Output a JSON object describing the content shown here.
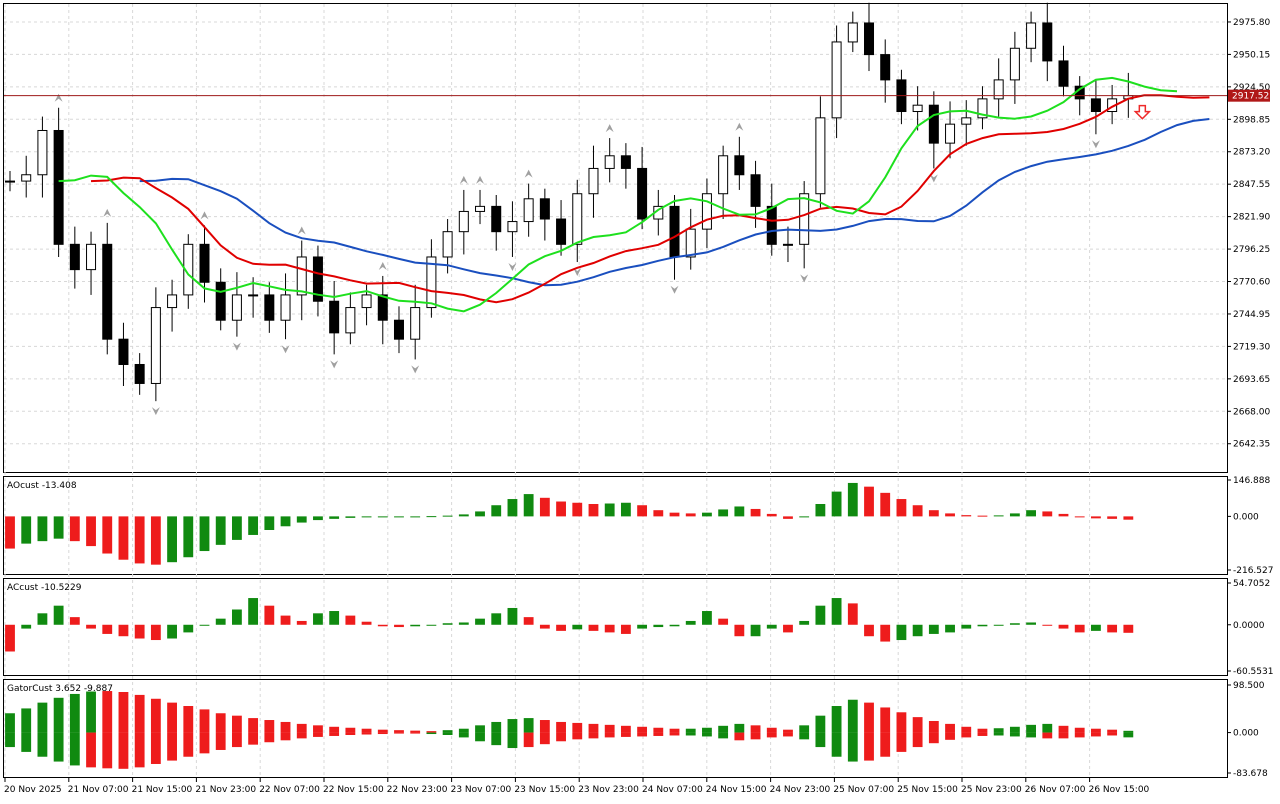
{
  "colors": {
    "background": "#ffffff",
    "grid": "#d8d8d8",
    "frame": "#000000",
    "candle_up_body": "#ffffff",
    "candle_down_body": "#000000",
    "jaw": "#1a4fbf",
    "teeth": "#e00000",
    "lips": "#1ee01e",
    "bar_up": "#108a10",
    "bar_down": "#ee1c1c",
    "price_line": "#9e1a1a",
    "price_tag": "#b01818",
    "fractal": "#a0a0a0",
    "arrow": "#ee2a2a"
  },
  "chart_data": [
    {
      "type": "candlestick",
      "panel": "main",
      "ylim": [
        2620,
        2990
      ],
      "y_ticks": [
        "2975.80",
        "2950.15",
        "2924.50",
        "2898.85",
        "2873.20",
        "2847.55",
        "2821.90",
        "2796.25",
        "2770.60",
        "2744.95",
        "2719.30",
        "2693.65",
        "2668.00",
        "2642.35"
      ],
      "current_price": "2917.52",
      "grid": true,
      "indicators": [
        "jaw (blue)",
        "teeth (red)",
        "lips (green)",
        "fractals",
        "sell arrow"
      ],
      "ohlc_anchors": [
        2850,
        2855,
        2890,
        2800,
        2780,
        2800,
        2725,
        2705,
        2690,
        2750,
        2760,
        2800,
        2770,
        2740,
        2760,
        2760,
        2740,
        2760,
        2790,
        2755,
        2730,
        2750,
        2760,
        2740,
        2725,
        2750,
        2790,
        2810,
        2826,
        2830,
        2810,
        2818,
        2836,
        2820,
        2800,
        2840,
        2860,
        2870,
        2860,
        2820,
        2830,
        2790,
        2812,
        2840,
        2870,
        2855,
        2830,
        2800,
        2800,
        2840,
        2900,
        2960,
        2975,
        2950,
        2930,
        2905,
        2910,
        2880,
        2895,
        2900,
        2915,
        2930,
        2955,
        2975,
        2945,
        2925,
        2915,
        2905,
        2915,
        2917.52
      ]
    },
    {
      "type": "histogram",
      "panel": "AOcust",
      "label": "AOcust -13.408",
      "ylim": [
        -216.527,
        146.888
      ],
      "y_ticks": [
        "146.888",
        "0.000",
        "-216.527"
      ],
      "values": [
        -130,
        -110,
        -100,
        -90,
        -100,
        -120,
        -150,
        -175,
        -190,
        -195,
        -185,
        -165,
        -140,
        -115,
        -95,
        -75,
        -55,
        -40,
        -25,
        -15,
        -10,
        -6,
        -4,
        -2,
        -1,
        0,
        1,
        3,
        8,
        20,
        45,
        70,
        90,
        75,
        60,
        55,
        50,
        52,
        55,
        45,
        25,
        15,
        12,
        15,
        28,
        40,
        30,
        10,
        -10,
        0,
        50,
        100,
        135,
        120,
        95,
        70,
        45,
        25,
        12,
        5,
        3,
        4,
        12,
        25,
        20,
        10,
        -4,
        -8,
        -10,
        -13.408
      ],
      "threshold_labels": []
    },
    {
      "type": "histogram",
      "panel": "ACcust",
      "label": "ACcust -10.5229",
      "ylim": [
        -60.5531,
        54.7052
      ],
      "y_ticks": [
        "54.7052",
        "0.0000",
        "-60.5531"
      ],
      "values": [
        -35,
        -5,
        15,
        25,
        10,
        -5,
        -12,
        -15,
        -18,
        -20,
        -18,
        -10,
        0,
        8,
        20,
        35,
        25,
        12,
        5,
        15,
        18,
        12,
        4,
        -2,
        -3,
        -2,
        0,
        2,
        3,
        8,
        15,
        22,
        10,
        -5,
        -8,
        -6,
        -8,
        -10,
        -12,
        -5,
        -3,
        -2,
        5,
        18,
        8,
        -15,
        -15,
        -5,
        -10,
        5,
        25,
        35,
        28,
        -15,
        -22,
        -20,
        -15,
        -12,
        -10,
        -5,
        -2,
        0,
        2,
        3,
        0,
        -5,
        -10,
        -8,
        -10,
        -10.5229
      ]
    },
    {
      "type": "histogram",
      "panel": "GatorCust",
      "label": "GatorCust 3.652 -9.887",
      "ylim": [
        -83.678,
        98.5
      ],
      "y_ticks": [
        "98.500",
        "0.000",
        "-83.678"
      ],
      "upper_values": [
        40,
        50,
        62,
        72,
        80,
        85,
        86,
        84,
        78,
        70,
        62,
        55,
        48,
        40,
        35,
        30,
        26,
        22,
        18,
        15,
        12,
        10,
        8,
        6,
        5,
        4,
        3,
        5,
        8,
        15,
        22,
        28,
        30,
        26,
        22,
        20,
        18,
        16,
        14,
        12,
        10,
        8,
        8,
        10,
        14,
        18,
        15,
        10,
        6,
        15,
        35,
        55,
        68,
        62,
        52,
        42,
        32,
        24,
        18,
        12,
        8,
        9,
        12,
        16,
        18,
        14,
        10,
        8,
        6,
        3.652
      ],
      "upper_colors": [
        "g",
        "g",
        "g",
        "g",
        "g",
        "g",
        "r",
        "r",
        "r",
        "r",
        "r",
        "r",
        "r",
        "r",
        "r",
        "r",
        "r",
        "r",
        "r",
        "r",
        "r",
        "r",
        "r",
        "r",
        "r",
        "r",
        "r",
        "g",
        "g",
        "g",
        "g",
        "g",
        "g",
        "r",
        "r",
        "r",
        "r",
        "r",
        "r",
        "r",
        "r",
        "r",
        "g",
        "g",
        "g",
        "g",
        "r",
        "r",
        "r",
        "g",
        "g",
        "g",
        "g",
        "r",
        "r",
        "r",
        "r",
        "r",
        "r",
        "r",
        "r",
        "g",
        "g",
        "g",
        "g",
        "r",
        "r",
        "r",
        "r",
        "g"
      ],
      "lower_values": [
        -30,
        -40,
        -50,
        -60,
        -68,
        -72,
        -74,
        -75,
        -72,
        -65,
        -58,
        -50,
        -43,
        -36,
        -30,
        -25,
        -20,
        -16,
        -12,
        -9,
        -7,
        -5,
        -4,
        -3,
        -2,
        -2,
        -3,
        -5,
        -10,
        -18,
        -26,
        -32,
        -30,
        -24,
        -18,
        -14,
        -12,
        -10,
        -9,
        -8,
        -7,
        -6,
        -6,
        -8,
        -12,
        -16,
        -14,
        -10,
        -8,
        -14,
        -30,
        -50,
        -60,
        -58,
        -50,
        -40,
        -30,
        -22,
        -15,
        -10,
        -7,
        -6,
        -8,
        -10,
        -12,
        -12,
        -10,
        -8,
        -6,
        -9.887
      ],
      "lower_colors": [
        "g",
        "g",
        "g",
        "g",
        "g",
        "r",
        "r",
        "r",
        "r",
        "r",
        "r",
        "r",
        "r",
        "r",
        "r",
        "r",
        "r",
        "r",
        "r",
        "r",
        "r",
        "r",
        "r",
        "r",
        "r",
        "r",
        "g",
        "g",
        "g",
        "g",
        "g",
        "g",
        "r",
        "r",
        "r",
        "r",
        "r",
        "r",
        "r",
        "r",
        "r",
        "r",
        "g",
        "g",
        "g",
        "r",
        "r",
        "r",
        "r",
        "g",
        "g",
        "g",
        "g",
        "r",
        "r",
        "r",
        "r",
        "r",
        "r",
        "r",
        "r",
        "g",
        "g",
        "g",
        "r",
        "r",
        "r",
        "r",
        "r",
        "g"
      ]
    }
  ],
  "x_labels": [
    "20 Nov 2025",
    "21 Nov 07:00",
    "21 Nov 15:00",
    "21 Nov 23:00",
    "22 Nov 07:00",
    "22 Nov 15:00",
    "22 Nov 23:00",
    "23 Nov 07:00",
    "23 Nov 15:00",
    "23 Nov 23:00",
    "24 Nov 07:00",
    "24 Nov 15:00",
    "24 Nov 23:00",
    "25 Nov 07:00",
    "25 Nov 15:00",
    "25 Nov 23:00",
    "26 Nov 07:00",
    "26 Nov 15:00"
  ]
}
